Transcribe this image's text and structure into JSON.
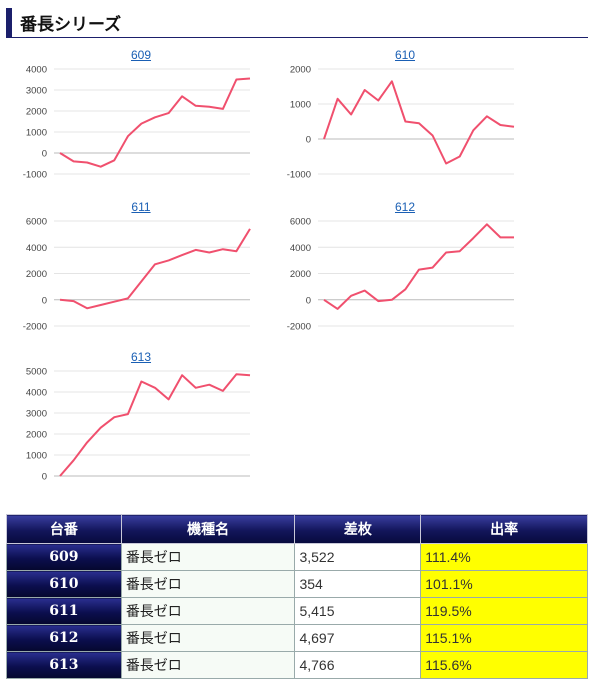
{
  "header": {
    "title": "番長シリーズ"
  },
  "charts": [
    {
      "id": "609",
      "yticks": [
        4000,
        3000,
        2000,
        1000,
        0,
        -1000
      ],
      "ymin": -1000,
      "ymax": 4000,
      "values": [
        0,
        -400,
        -450,
        -650,
        -350,
        800,
        1400,
        1700,
        1900,
        2700,
        2250,
        2200,
        2100,
        3500,
        3550
      ]
    },
    {
      "id": "610",
      "yticks": [
        2000,
        1000,
        0,
        -1000
      ],
      "ymin": -1000,
      "ymax": 2000,
      "values": [
        0,
        1150,
        700,
        1400,
        1100,
        1650,
        500,
        450,
        100,
        -700,
        -500,
        250,
        650,
        400,
        350
      ]
    },
    {
      "id": "611",
      "yticks": [
        6000,
        4000,
        2000,
        0,
        -2000
      ],
      "ymin": -2000,
      "ymax": 6000,
      "values": [
        0,
        -100,
        -650,
        -400,
        -150,
        100,
        1400,
        2700,
        3000,
        3400,
        3800,
        3600,
        3850,
        3700,
        5400
      ]
    },
    {
      "id": "612",
      "yticks": [
        6000,
        4000,
        2000,
        0,
        -2000
      ],
      "ymin": -2000,
      "ymax": 6000,
      "values": [
        0,
        -700,
        300,
        700,
        -100,
        0,
        800,
        2300,
        2450,
        3600,
        3700,
        4700,
        5750,
        4750,
        4750
      ]
    },
    {
      "id": "613",
      "yticks": [
        5000,
        4000,
        3000,
        2000,
        1000,
        0
      ],
      "ymin": 0,
      "ymax": 5000,
      "values": [
        0,
        750,
        1600,
        2300,
        2800,
        2950,
        4500,
        4200,
        3650,
        4800,
        4200,
        4350,
        4050,
        4850,
        4800
      ]
    }
  ],
  "chart_data": [
    {
      "type": "line",
      "title": "609",
      "ylim": [
        -1000,
        4000
      ],
      "series": [
        {
          "values": [
            0,
            -400,
            -450,
            -650,
            -350,
            800,
            1400,
            1700,
            1900,
            2700,
            2250,
            2200,
            2100,
            3500,
            3550
          ]
        }
      ]
    },
    {
      "type": "line",
      "title": "610",
      "ylim": [
        -1000,
        2000
      ],
      "series": [
        {
          "values": [
            0,
            1150,
            700,
            1400,
            1100,
            1650,
            500,
            450,
            100,
            -700,
            -500,
            250,
            650,
            400,
            350
          ]
        }
      ]
    },
    {
      "type": "line",
      "title": "611",
      "ylim": [
        -2000,
        6000
      ],
      "series": [
        {
          "values": [
            0,
            -100,
            -650,
            -400,
            -150,
            100,
            1400,
            2700,
            3000,
            3400,
            3800,
            3600,
            3850,
            3700,
            5400
          ]
        }
      ]
    },
    {
      "type": "line",
      "title": "612",
      "ylim": [
        -2000,
        6000
      ],
      "series": [
        {
          "values": [
            0,
            -700,
            300,
            700,
            -100,
            0,
            800,
            2300,
            2450,
            3600,
            3700,
            4700,
            5750,
            4750,
            4750
          ]
        }
      ]
    },
    {
      "type": "line",
      "title": "613",
      "ylim": [
        0,
        5000
      ],
      "series": [
        {
          "values": [
            0,
            750,
            1600,
            2300,
            2800,
            2950,
            4500,
            4200,
            3650,
            4800,
            4200,
            4350,
            4050,
            4850,
            4800
          ]
        }
      ]
    }
  ],
  "colors": {
    "line": "#f0506e",
    "grid": "#e4e4e4",
    "axis": "#bbbbbb",
    "link": "#1a5fb4",
    "highlight": "#ffff00"
  },
  "table": {
    "headers": [
      "台番",
      "機種名",
      "差枚",
      "出率"
    ],
    "rows": [
      {
        "num": "609",
        "name": "番長ゼロ",
        "diff": "3,522",
        "rate": "111.4%"
      },
      {
        "num": "610",
        "name": "番長ゼロ",
        "diff": "354",
        "rate": "101.1%"
      },
      {
        "num": "611",
        "name": "番長ゼロ",
        "diff": "5,415",
        "rate": "119.5%"
      },
      {
        "num": "612",
        "name": "番長ゼロ",
        "diff": "4,697",
        "rate": "115.1%"
      },
      {
        "num": "613",
        "name": "番長ゼロ",
        "diff": "4,766",
        "rate": "115.6%"
      }
    ]
  }
}
